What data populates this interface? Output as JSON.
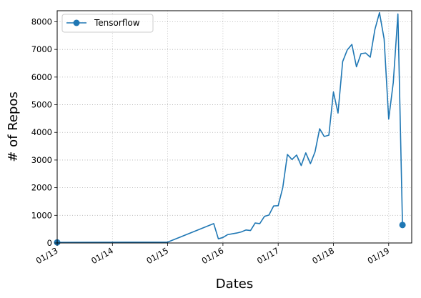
{
  "chart_data": {
    "type": "line",
    "xlabel": "Dates",
    "ylabel": "# of Repos",
    "x_ticks": [
      "01/13",
      "01/14",
      "01/15",
      "01/16",
      "01/17",
      "01/18",
      "01/19"
    ],
    "y_ticks": [
      0,
      1000,
      2000,
      3000,
      4000,
      5000,
      6000,
      7000,
      8000
    ],
    "xlim": [
      "2013-01",
      "2019-06"
    ],
    "ylim": [
      0,
      8400
    ],
    "grid": true,
    "legend": "upper-left",
    "series": [
      {
        "name": "Tensorflow",
        "color": "#1f77b4",
        "points": [
          [
            "2013-01",
            20
          ],
          [
            "2015-01",
            30
          ],
          [
            "2015-11",
            700
          ],
          [
            "2015-12",
            150
          ],
          [
            "2016-01",
            200
          ],
          [
            "2016-02",
            300
          ],
          [
            "2016-03",
            330
          ],
          [
            "2016-04",
            360
          ],
          [
            "2016-05",
            400
          ],
          [
            "2016-06",
            470
          ],
          [
            "2016-07",
            450
          ],
          [
            "2016-08",
            720
          ],
          [
            "2016-09",
            700
          ],
          [
            "2016-10",
            960
          ],
          [
            "2016-11",
            1010
          ],
          [
            "2016-12",
            1340
          ],
          [
            "2017-01",
            1350
          ],
          [
            "2017-02",
            2000
          ],
          [
            "2017-03",
            3200
          ],
          [
            "2017-04",
            3020
          ],
          [
            "2017-05",
            3180
          ],
          [
            "2017-06",
            2800
          ],
          [
            "2017-07",
            3260
          ],
          [
            "2017-08",
            2870
          ],
          [
            "2017-09",
            3290
          ],
          [
            "2017-10",
            4130
          ],
          [
            "2017-11",
            3850
          ],
          [
            "2017-12",
            3900
          ],
          [
            "2018-01",
            5460
          ],
          [
            "2018-02",
            4700
          ],
          [
            "2018-03",
            6560
          ],
          [
            "2018-04",
            6980
          ],
          [
            "2018-05",
            7180
          ],
          [
            "2018-06",
            6370
          ],
          [
            "2018-07",
            6850
          ],
          [
            "2018-08",
            6870
          ],
          [
            "2018-09",
            6720
          ],
          [
            "2018-10",
            7720
          ],
          [
            "2018-11",
            8330
          ],
          [
            "2018-12",
            7380
          ],
          [
            "2019-01",
            4480
          ],
          [
            "2019-02",
            5800
          ],
          [
            "2019-03",
            8280
          ],
          [
            "2019-04",
            650
          ]
        ]
      }
    ]
  }
}
